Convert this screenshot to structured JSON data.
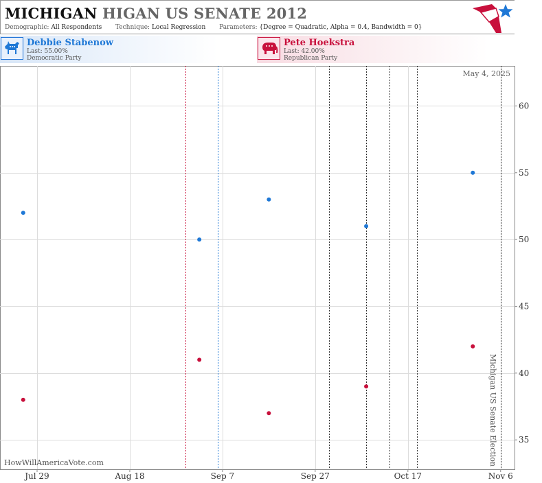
{
  "header": {
    "title_state": "MICHIGAN",
    "title_race": "HIGAN US SENATE 2012",
    "params": {
      "demographic_label": "Demographic:",
      "demographic_value": "All Respondents",
      "technique_label": "Technique:",
      "technique_value": "Local Regression",
      "parameters_label": "Parameters:",
      "parameters_value": "{Degree = Quadratic, Alpha = 0.4, Bandwidth = 0}"
    },
    "logo_icon": "flag-star-logo-icon"
  },
  "candidates": [
    {
      "id": "dem",
      "name": "Debbie Stabenow",
      "last": "Last: 55.00%",
      "party": "Democratic Party",
      "color": "#1f78d6",
      "icon": "donkey-icon"
    },
    {
      "id": "rep",
      "name": "Pete Hoekstra",
      "last": "Last: 42.00%",
      "party": "Republican Party",
      "color": "#c8103c",
      "icon": "elephant-icon"
    }
  ],
  "chart_data": {
    "type": "scatter",
    "x_range": [
      "2012-07-21",
      "2012-11-09"
    ],
    "y_range": [
      32.8,
      63.0
    ],
    "x_ticks": [
      {
        "date": "2012-07-29",
        "label": "Jul 29"
      },
      {
        "date": "2012-08-18",
        "label": "Aug 18"
      },
      {
        "date": "2012-09-07",
        "label": "Sep 7"
      },
      {
        "date": "2012-09-27",
        "label": "Sep 27"
      },
      {
        "date": "2012-10-17",
        "label": "Oct 17"
      },
      {
        "date": "2012-11-06",
        "label": "Nov 6"
      }
    ],
    "y_ticks": [
      35,
      40,
      45,
      50,
      55,
      60
    ],
    "grid": true,
    "series": [
      {
        "name": "Debbie Stabenow",
        "color": "#1f78d6",
        "points": [
          {
            "x": "2012-07-26",
            "y": 52
          },
          {
            "x": "2012-09-02",
            "y": 50
          },
          {
            "x": "2012-09-17",
            "y": 53
          },
          {
            "x": "2012-10-08",
            "y": 51
          },
          {
            "x": "2012-10-31",
            "y": 55
          }
        ]
      },
      {
        "name": "Pete Hoekstra",
        "color": "#c8103c",
        "points": [
          {
            "x": "2012-07-26",
            "y": 38
          },
          {
            "x": "2012-09-02",
            "y": 41
          },
          {
            "x": "2012-09-17",
            "y": 37
          },
          {
            "x": "2012-10-08",
            "y": 39
          },
          {
            "x": "2012-10-31",
            "y": 42
          }
        ]
      }
    ],
    "vertical_lines": [
      {
        "date": "2012-08-30",
        "color": "#c8103c"
      },
      {
        "date": "2012-09-06",
        "color": "#1f78d6"
      },
      {
        "date": "2012-09-30",
        "color": "#333333"
      },
      {
        "date": "2012-10-08",
        "color": "#333333"
      },
      {
        "date": "2012-10-13",
        "color": "#333333"
      },
      {
        "date": "2012-10-19",
        "color": "#333333"
      },
      {
        "date": "2012-11-06",
        "color": "#333333"
      }
    ],
    "annotations": {
      "date_stamp": "May 4, 2025",
      "election_label": "Michigan US Senate Election",
      "watermark": "HowWillAmericaVote.com"
    }
  }
}
